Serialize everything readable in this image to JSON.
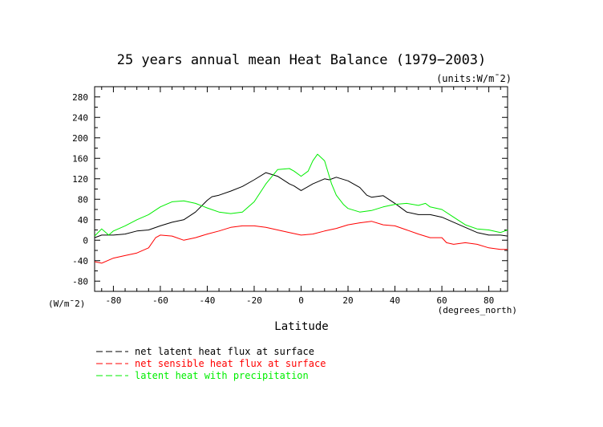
{
  "chart_data": {
    "type": "line",
    "title": "25 years annual mean Heat Balance (1979−2003)",
    "units_note": "(units:W/m¯2)",
    "xlabel": "Latitude",
    "ylabel": "(W/m¯2)",
    "x_unit_label": "(degrees_north)",
    "xlim": [
      -88,
      88
    ],
    "ylim": [
      -100,
      300
    ],
    "x_ticks": [
      -80,
      -60,
      -40,
      -20,
      0,
      20,
      40,
      60,
      80
    ],
    "y_ticks": [
      280,
      240,
      200,
      160,
      120,
      80,
      40,
      0,
      -40,
      -80
    ],
    "grid": false,
    "legend_position": "bottom-left",
    "series": [
      {
        "name": "net latent heat flux at surface",
        "color": "#000000",
        "x": [
          -88,
          -85,
          -80,
          -75,
          -70,
          -65,
          -60,
          -55,
          -50,
          -45,
          -40,
          -38,
          -35,
          -30,
          -25,
          -20,
          -15,
          -10,
          -5,
          -3,
          0,
          5,
          10,
          12,
          15,
          20,
          25,
          28,
          30,
          35,
          40,
          45,
          50,
          55,
          60,
          65,
          70,
          75,
          80,
          85,
          88
        ],
        "values": [
          5,
          10,
          10,
          12,
          18,
          20,
          28,
          35,
          40,
          55,
          78,
          85,
          88,
          96,
          105,
          118,
          132,
          125,
          110,
          106,
          97,
          110,
          120,
          118,
          123,
          116,
          103,
          88,
          84,
          87,
          72,
          55,
          50,
          50,
          45,
          35,
          25,
          15,
          10,
          10,
          8
        ]
      },
      {
        "name": "net sensible heat flux at surface",
        "color": "#ff0000",
        "x": [
          -88,
          -85,
          -80,
          -75,
          -70,
          -65,
          -62,
          -60,
          -55,
          -50,
          -45,
          -40,
          -35,
          -30,
          -25,
          -20,
          -15,
          -10,
          -5,
          0,
          5,
          10,
          15,
          20,
          25,
          30,
          35,
          40,
          45,
          50,
          55,
          60,
          62,
          65,
          70,
          75,
          80,
          85,
          88
        ],
        "values": [
          -42,
          -45,
          -35,
          -30,
          -25,
          -15,
          5,
          10,
          8,
          0,
          5,
          12,
          18,
          25,
          28,
          28,
          25,
          20,
          15,
          10,
          12,
          18,
          23,
          30,
          34,
          37,
          30,
          28,
          20,
          12,
          5,
          5,
          -5,
          -8,
          -5,
          -8,
          -15,
          -18,
          -18
        ]
      },
      {
        "name": "latent heat with precipitation",
        "color": "#00ee00",
        "x": [
          -88,
          -85,
          -82,
          -80,
          -75,
          -70,
          -65,
          -60,
          -55,
          -50,
          -45,
          -40,
          -35,
          -30,
          -25,
          -20,
          -15,
          -10,
          -5,
          -3,
          0,
          3,
          5,
          7,
          10,
          13,
          15,
          18,
          20,
          25,
          30,
          35,
          40,
          45,
          50,
          53,
          55,
          60,
          65,
          70,
          75,
          80,
          85,
          88
        ],
        "values": [
          8,
          22,
          10,
          18,
          28,
          40,
          50,
          65,
          75,
          77,
          72,
          63,
          55,
          52,
          55,
          75,
          110,
          138,
          140,
          135,
          125,
          135,
          155,
          168,
          155,
          110,
          88,
          70,
          62,
          55,
          58,
          65,
          70,
          72,
          68,
          72,
          65,
          60,
          45,
          30,
          22,
          20,
          15,
          20
        ]
      }
    ]
  }
}
